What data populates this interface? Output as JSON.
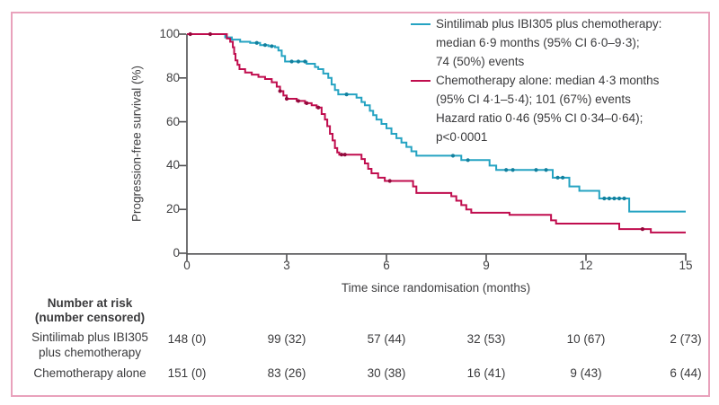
{
  "figure": {
    "border_color": "#e9a2bc",
    "background": "#ffffff"
  },
  "chart_data": {
    "type": "line",
    "subtype": "kaplan-meier-step",
    "title": "",
    "xlabel": "Time since randomisation (months)",
    "ylabel": "Progression-free survival (%)",
    "xlim": [
      0,
      15
    ],
    "ylim": [
      0,
      100
    ],
    "xticks": [
      0,
      3,
      6,
      9,
      12,
      15
    ],
    "yticks": [
      100,
      80,
      60,
      40,
      20,
      0
    ],
    "grid": false,
    "legend_position": "top-right",
    "axis_color": "#4e4e50",
    "series": [
      {
        "name": "Sintilimab plus IBI305 plus chemotherapy",
        "color": "#25a3c2",
        "censor_color": "#12809e",
        "median_months": "6·9",
        "ci_95": "6·0–9·3",
        "events": "74 (50%)",
        "steps": [
          [
            0,
            100
          ],
          [
            1.15,
            98.5
          ],
          [
            1.35,
            97.5
          ],
          [
            1.6,
            96.5
          ],
          [
            1.9,
            96
          ],
          [
            2.2,
            95
          ],
          [
            2.45,
            94.5
          ],
          [
            2.65,
            94
          ],
          [
            2.75,
            92.5
          ],
          [
            2.85,
            90
          ],
          [
            2.95,
            87.5
          ],
          [
            3.6,
            86.5
          ],
          [
            3.85,
            85
          ],
          [
            3.95,
            84
          ],
          [
            4.1,
            82
          ],
          [
            4.25,
            80
          ],
          [
            4.35,
            77
          ],
          [
            4.45,
            74.5
          ],
          [
            4.55,
            72.5
          ],
          [
            5.1,
            71
          ],
          [
            5.25,
            69
          ],
          [
            5.35,
            67.5
          ],
          [
            5.5,
            65
          ],
          [
            5.6,
            63
          ],
          [
            5.7,
            61
          ],
          [
            5.85,
            59
          ],
          [
            6.0,
            57
          ],
          [
            6.15,
            54.5
          ],
          [
            6.3,
            52.5
          ],
          [
            6.45,
            50.5
          ],
          [
            6.6,
            48.5
          ],
          [
            6.75,
            46.5
          ],
          [
            6.9,
            44.5
          ],
          [
            8.25,
            42.5
          ],
          [
            9.1,
            40
          ],
          [
            9.3,
            38
          ],
          [
            11.0,
            34.5
          ],
          [
            11.5,
            30.5
          ],
          [
            11.8,
            28.5
          ],
          [
            12.4,
            25
          ],
          [
            13.3,
            19
          ]
        ],
        "censor_times": [
          2.1,
          2.35,
          2.55,
          3.15,
          3.35,
          3.55,
          4.8,
          8.0,
          8.45,
          9.6,
          9.8,
          10.5,
          10.8,
          11.15,
          11.3,
          12.55,
          12.7,
          12.85,
          13.0,
          13.15
        ]
      },
      {
        "name": "Chemotherapy alone",
        "color": "#c00d4e",
        "censor_color": "#93093c",
        "median_months": "4·3",
        "ci_95": "4·1–5·4",
        "events": "101 (67%)",
        "steps": [
          [
            0,
            100
          ],
          [
            1.2,
            98
          ],
          [
            1.3,
            96.5
          ],
          [
            1.38,
            94
          ],
          [
            1.42,
            91
          ],
          [
            1.46,
            88
          ],
          [
            1.52,
            86
          ],
          [
            1.58,
            84
          ],
          [
            1.75,
            82.5
          ],
          [
            1.95,
            81.5
          ],
          [
            2.15,
            80.5
          ],
          [
            2.35,
            79.5
          ],
          [
            2.55,
            78
          ],
          [
            2.7,
            76
          ],
          [
            2.8,
            74
          ],
          [
            2.9,
            72
          ],
          [
            3.0,
            70.5
          ],
          [
            3.3,
            69.5
          ],
          [
            3.55,
            68.5
          ],
          [
            3.75,
            67.5
          ],
          [
            3.9,
            66.5
          ],
          [
            4.05,
            63.5
          ],
          [
            4.15,
            61
          ],
          [
            4.22,
            58
          ],
          [
            4.3,
            54.5
          ],
          [
            4.38,
            51.5
          ],
          [
            4.45,
            48
          ],
          [
            4.52,
            46
          ],
          [
            4.58,
            45
          ],
          [
            5.25,
            43
          ],
          [
            5.35,
            41
          ],
          [
            5.45,
            38.5
          ],
          [
            5.55,
            36.5
          ],
          [
            5.75,
            34.5
          ],
          [
            5.95,
            33
          ],
          [
            6.8,
            30.5
          ],
          [
            6.9,
            27.5
          ],
          [
            7.95,
            26
          ],
          [
            8.1,
            24
          ],
          [
            8.25,
            22
          ],
          [
            8.4,
            20
          ],
          [
            8.55,
            18.5
          ],
          [
            9.7,
            17.5
          ],
          [
            10.95,
            15
          ],
          [
            11.1,
            13.5
          ],
          [
            13.0,
            11
          ],
          [
            13.95,
            9.5
          ]
        ],
        "censor_times": [
          0.1,
          0.7,
          2.8,
          3.0,
          3.35,
          3.6,
          3.95,
          4.65,
          4.75,
          6.1,
          13.7
        ]
      }
    ],
    "annotations": {
      "hazard_ratio": "Hazard ratio 0·46 (95% CI 0·34–0·64);",
      "p_value": "p<0·0001"
    }
  },
  "legend": {
    "lines": [
      {
        "series": 0,
        "swatch": true,
        "text": "Sintilimab plus IBI305 plus chemotherapy:"
      },
      {
        "series": 0,
        "swatch": false,
        "text": "median 6·9 months (95% CI 6·0–9·3);"
      },
      {
        "series": 0,
        "swatch": false,
        "text": "74 (50%) events"
      },
      {
        "series": 1,
        "swatch": true,
        "text": "Chemotherapy alone: median 4·3 months"
      },
      {
        "series": 1,
        "swatch": false,
        "text": "(95% CI 4·1–5·4); 101 (67%) events"
      },
      {
        "series": 1,
        "swatch": false,
        "text": "Hazard ratio 0·46 (95% CI 0·34–0·64);"
      },
      {
        "series": 1,
        "swatch": false,
        "text": "p<0·0001"
      }
    ]
  },
  "risk_table": {
    "header_line1": "Number at risk",
    "header_line2": "(number censored)",
    "rows": [
      {
        "label_lines": [
          "Sintilimab plus IBI305",
          "plus chemotherapy"
        ],
        "values": [
          "148 (0)",
          "99 (32)",
          "57 (44)",
          "32 (53)",
          "10 (67)",
          "2 (73)"
        ]
      },
      {
        "label_lines": [
          "Chemotherapy alone"
        ],
        "values": [
          "151 (0)",
          "83 (26)",
          "30 (38)",
          "16 (41)",
          "9 (43)",
          "6 (44)"
        ]
      }
    ]
  }
}
